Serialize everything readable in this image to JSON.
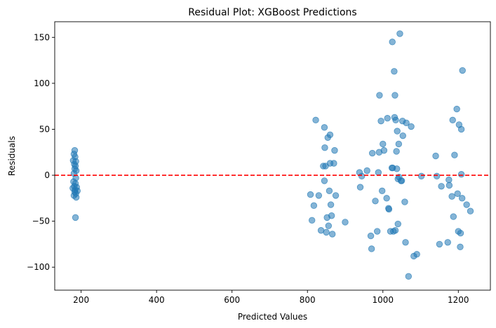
{
  "chart_data": {
    "type": "scatter",
    "title": "Residual Plot: XGBoost Predictions",
    "xlabel": "Predicted Values",
    "ylabel": "Residuals",
    "xlim": [
      130,
      1285
    ],
    "ylim": [
      -125,
      167
    ],
    "xticks": [
      200,
      400,
      600,
      800,
      1000,
      1200
    ],
    "yticks": [
      -100,
      -50,
      0,
      50,
      100,
      150
    ],
    "grid": false,
    "point_color": "#1f77b4",
    "point_alpha": 0.55,
    "reference_line": {
      "y": 0,
      "color": "#ff0000",
      "style": "dashed"
    },
    "points": [
      [
        183,
        27
      ],
      [
        181,
        23
      ],
      [
        184,
        20
      ],
      [
        179,
        16
      ],
      [
        186,
        15
      ],
      [
        182,
        12
      ],
      [
        185,
        10
      ],
      [
        183,
        7
      ],
      [
        187,
        5
      ],
      [
        181,
        2
      ],
      [
        186,
        -3
      ],
      [
        180,
        -7
      ],
      [
        185,
        -9
      ],
      [
        182,
        -12
      ],
      [
        188,
        -13
      ],
      [
        178,
        -14
      ],
      [
        184,
        -16
      ],
      [
        190,
        -17
      ],
      [
        183,
        -18
      ],
      [
        186,
        -20
      ],
      [
        181,
        -22
      ],
      [
        187,
        -24
      ],
      [
        185,
        -46
      ],
      [
        808,
        -21
      ],
      [
        812,
        -49
      ],
      [
        817,
        -33
      ],
      [
        822,
        60
      ],
      [
        830,
        -22
      ],
      [
        836,
        -60
      ],
      [
        842,
        10
      ],
      [
        845,
        52
      ],
      [
        845,
        -6
      ],
      [
        846,
        30
      ],
      [
        848,
        10
      ],
      [
        850,
        -62
      ],
      [
        852,
        -46
      ],
      [
        854,
        41
      ],
      [
        856,
        -55
      ],
      [
        858,
        -17
      ],
      [
        860,
        44
      ],
      [
        860,
        13
      ],
      [
        862,
        -32
      ],
      [
        864,
        -44
      ],
      [
        866,
        -64
      ],
      [
        870,
        13
      ],
      [
        872,
        27
      ],
      [
        875,
        -22
      ],
      [
        900,
        -51
      ],
      [
        938,
        3
      ],
      [
        940,
        -13
      ],
      [
        944,
        -1
      ],
      [
        958,
        5
      ],
      [
        968,
        -66
      ],
      [
        970,
        -80
      ],
      [
        972,
        24
      ],
      [
        980,
        -28
      ],
      [
        985,
        -61
      ],
      [
        988,
        3
      ],
      [
        990,
        25
      ],
      [
        991,
        87
      ],
      [
        995,
        59
      ],
      [
        998,
        -17
      ],
      [
        1000,
        34
      ],
      [
        1003,
        27
      ],
      [
        1010,
        -25
      ],
      [
        1012,
        62
      ],
      [
        1015,
        -36
      ],
      [
        1016,
        -37
      ],
      [
        1020,
        -61
      ],
      [
        1024,
        8
      ],
      [
        1025,
        145
      ],
      [
        1026,
        8
      ],
      [
        1028,
        -61
      ],
      [
        1030,
        113
      ],
      [
        1031,
        63
      ],
      [
        1032,
        87
      ],
      [
        1033,
        -60
      ],
      [
        1034,
        60
      ],
      [
        1036,
        26
      ],
      [
        1037,
        7
      ],
      [
        1038,
        48
      ],
      [
        1040,
        -53
      ],
      [
        1040,
        -4
      ],
      [
        1042,
        34
      ],
      [
        1043,
        -2
      ],
      [
        1045,
        154
      ],
      [
        1048,
        -6
      ],
      [
        1050,
        -6
      ],
      [
        1052,
        59
      ],
      [
        1053,
        43
      ],
      [
        1058,
        -29
      ],
      [
        1060,
        -73
      ],
      [
        1062,
        57
      ],
      [
        1068,
        -110
      ],
      [
        1075,
        53
      ],
      [
        1082,
        -88
      ],
      [
        1090,
        -86
      ],
      [
        1102,
        -1
      ],
      [
        1140,
        21
      ],
      [
        1143,
        -1
      ],
      [
        1150,
        -75
      ],
      [
        1155,
        -12
      ],
      [
        1172,
        -73
      ],
      [
        1175,
        -5
      ],
      [
        1176,
        -11
      ],
      [
        1183,
        -23
      ],
      [
        1185,
        60
      ],
      [
        1187,
        -45
      ],
      [
        1190,
        22
      ],
      [
        1196,
        72
      ],
      [
        1198,
        -20
      ],
      [
        1200,
        -61
      ],
      [
        1202,
        55
      ],
      [
        1205,
        -78
      ],
      [
        1206,
        -63
      ],
      [
        1208,
        50
      ],
      [
        1210,
        -25
      ],
      [
        1208,
        1
      ],
      [
        1211,
        114
      ],
      [
        1222,
        -32
      ],
      [
        1232,
        -39
      ]
    ]
  }
}
